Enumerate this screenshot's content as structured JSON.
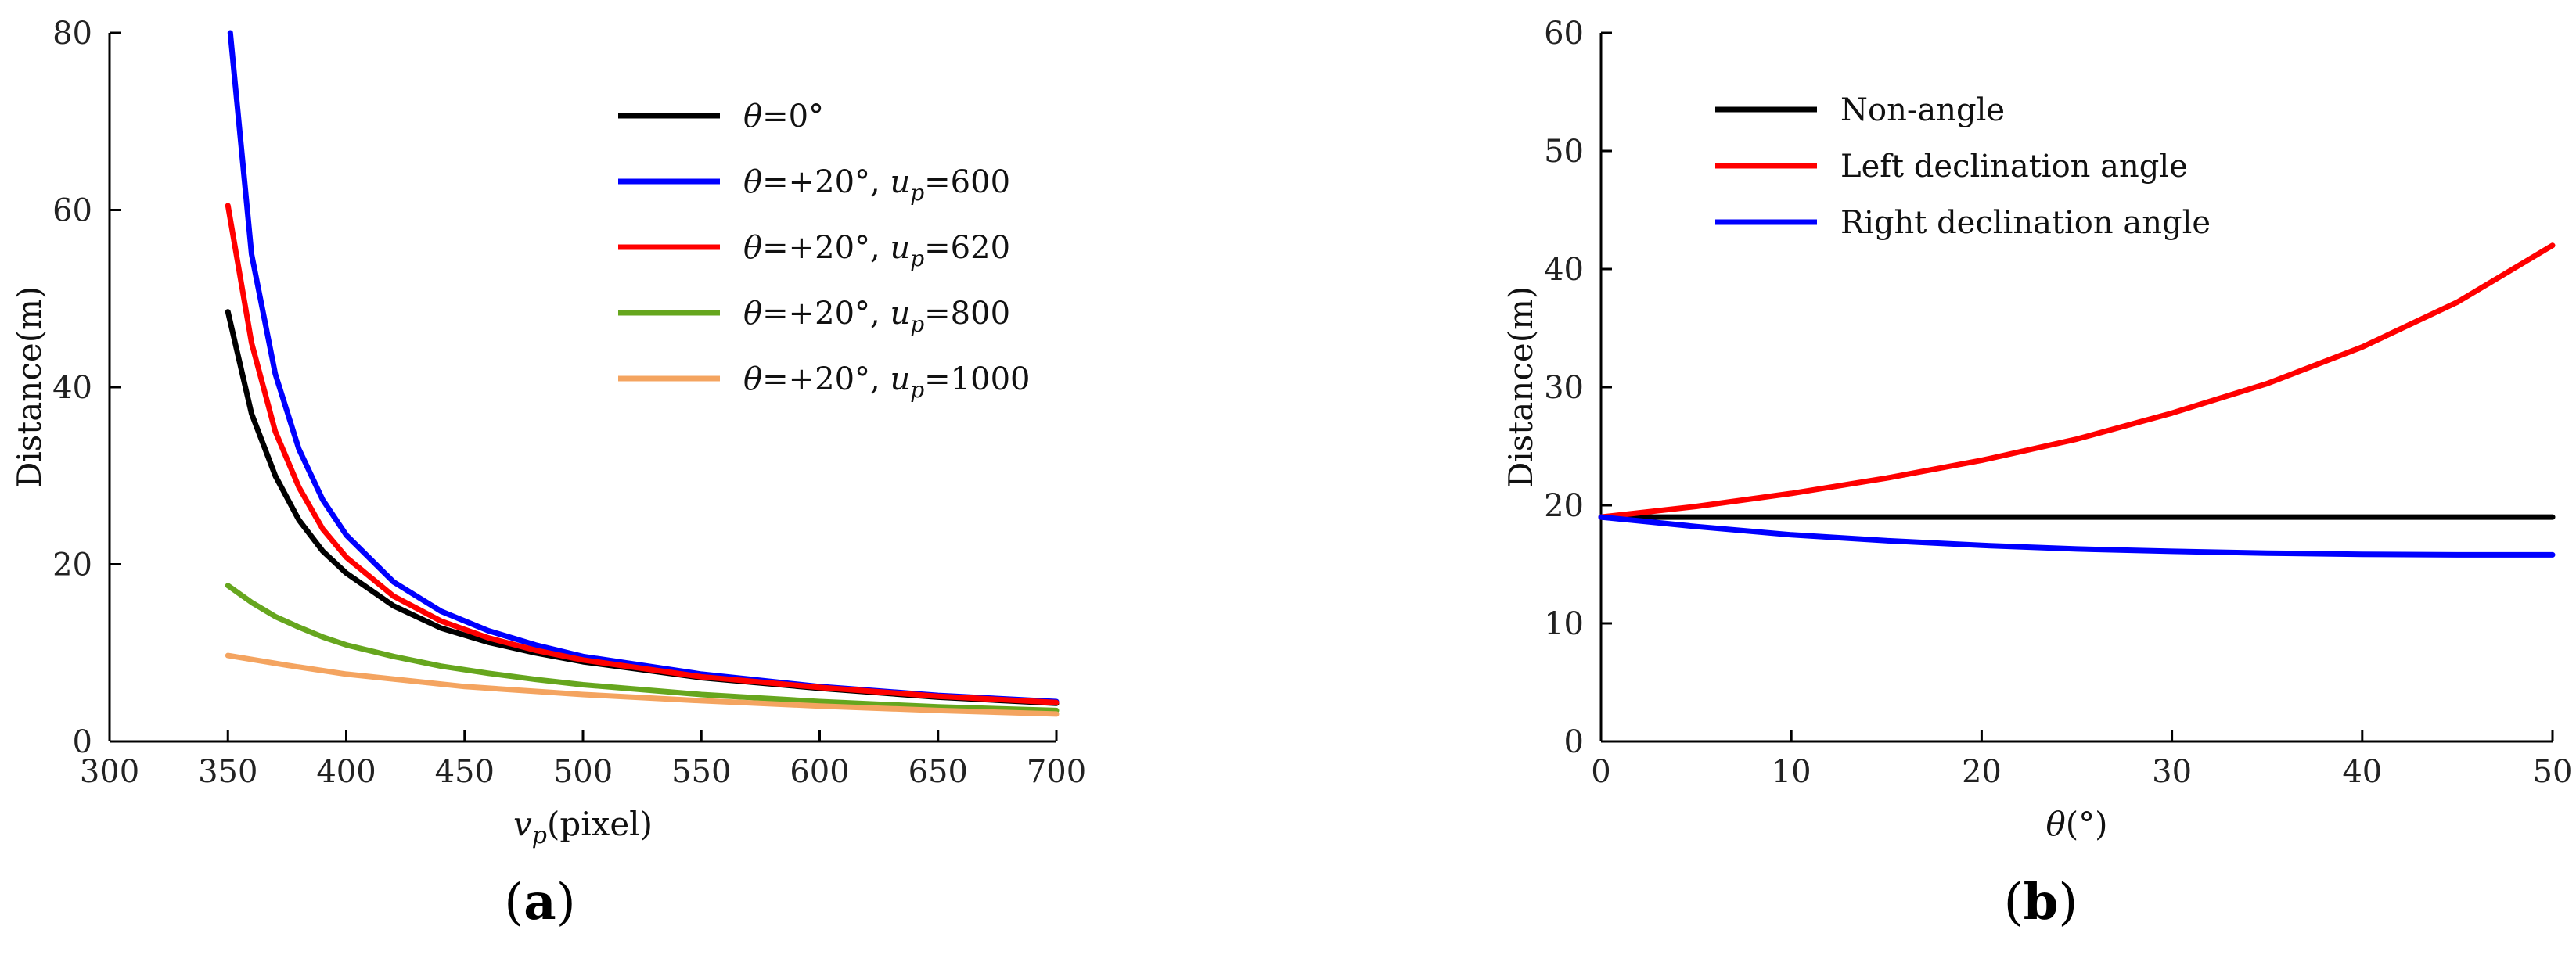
{
  "chart_data": [
    {
      "type": "line",
      "panel_label": "a",
      "xlabel_parts": [
        "v",
        "p",
        "(pixel)"
      ],
      "ylabel": "Distance(m)",
      "xlim": [
        300,
        700
      ],
      "ylim": [
        0,
        80
      ],
      "xticks": [
        300,
        350,
        400,
        450,
        500,
        550,
        600,
        650,
        700
      ],
      "yticks": [
        0,
        20,
        40,
        60,
        80
      ],
      "legend_position": "top-right",
      "series": [
        {
          "name": "θ=0°",
          "legend": {
            "sym": "θ",
            "rest": "=0°",
            "sub": "",
            "val": ""
          },
          "color": "#000000",
          "x": [
            350,
            360,
            370,
            380,
            390,
            400,
            420,
            440,
            460,
            480,
            500,
            550,
            600,
            650,
            700
          ],
          "y": [
            48.5,
            37,
            30,
            25,
            21.5,
            19,
            15.3,
            12.8,
            11.2,
            10,
            9,
            7.2,
            6,
            5,
            4.3
          ]
        },
        {
          "name": "θ=+20°, up=600",
          "legend": {
            "sym": "θ",
            "rest": "=+20°, ",
            "sub": "p",
            "val": "=600"
          },
          "color": "#0000ff",
          "x": [
            351,
            360,
            370,
            380,
            390,
            400,
            420,
            440,
            460,
            480,
            500,
            550,
            600,
            650,
            700
          ],
          "y": [
            80,
            55,
            41.5,
            33,
            27.3,
            23.3,
            18,
            14.7,
            12.5,
            10.9,
            9.6,
            7.6,
            6.2,
            5.2,
            4.5
          ]
        },
        {
          "name": "θ=+20°, up=620",
          "legend": {
            "sym": "θ",
            "rest": "=+20°, ",
            "sub": "p",
            "val": "=620"
          },
          "color": "#ff0000",
          "x": [
            350,
            360,
            370,
            380,
            390,
            400,
            420,
            440,
            460,
            480,
            500,
            550,
            600,
            650,
            700
          ],
          "y": [
            60.5,
            45,
            35,
            28.7,
            24,
            20.8,
            16.4,
            13.6,
            11.7,
            10.3,
            9.2,
            7.3,
            6.1,
            5.1,
            4.4
          ]
        },
        {
          "name": "θ=+20°, up=800",
          "legend": {
            "sym": "θ",
            "rest": "=+20°, ",
            "sub": "p",
            "val": "=800"
          },
          "color": "#66a61e",
          "x": [
            350,
            360,
            370,
            380,
            390,
            400,
            420,
            440,
            460,
            480,
            500,
            550,
            600,
            650,
            700
          ],
          "y": [
            17.6,
            15.7,
            14.1,
            12.9,
            11.8,
            10.9,
            9.6,
            8.5,
            7.7,
            7,
            6.4,
            5.3,
            4.5,
            3.9,
            3.5
          ]
        },
        {
          "name": "θ=+20°, up=1000",
          "legend": {
            "sym": "θ",
            "rest": "=+20°, ",
            "sub": "p",
            "val": "=1000"
          },
          "color": "#f4a460",
          "x": [
            350,
            375,
            400,
            450,
            500,
            550,
            600,
            650,
            700
          ],
          "y": [
            9.7,
            8.6,
            7.6,
            6.2,
            5.3,
            4.6,
            4,
            3.5,
            3.1
          ]
        }
      ]
    },
    {
      "type": "line",
      "panel_label": "b",
      "xlabel_parts": [
        "θ",
        "",
        "(°)"
      ],
      "ylabel": "Distance(m)",
      "xlim": [
        0,
        50
      ],
      "ylim": [
        0,
        60
      ],
      "xticks": [
        0,
        10,
        20,
        30,
        40,
        50
      ],
      "yticks": [
        0,
        10,
        20,
        30,
        40,
        50,
        60
      ],
      "legend_position": "top-left",
      "series": [
        {
          "name": "Non-angle",
          "legend": {
            "sym": "",
            "rest": "Non-angle",
            "sub": "",
            "val": ""
          },
          "color": "#000000",
          "x": [
            0,
            50
          ],
          "y": [
            19,
            19
          ]
        },
        {
          "name": "Left declination angle",
          "legend": {
            "sym": "",
            "rest": "Left declination angle",
            "sub": "",
            "val": ""
          },
          "color": "#ff0000",
          "x": [
            0,
            5,
            10,
            15,
            20,
            25,
            30,
            35,
            40,
            45,
            50
          ],
          "y": [
            19,
            19.9,
            21,
            22.3,
            23.8,
            25.6,
            27.8,
            30.3,
            33.4,
            37.2,
            42
          ]
        },
        {
          "name": "Right declination angle",
          "legend": {
            "sym": "",
            "rest": "Right declination angle",
            "sub": "",
            "val": ""
          },
          "color": "#0000ff",
          "x": [
            0,
            5,
            10,
            15,
            20,
            25,
            30,
            35,
            40,
            45,
            50
          ],
          "y": [
            19,
            18.2,
            17.5,
            17,
            16.6,
            16.3,
            16.1,
            15.95,
            15.85,
            15.8,
            15.8
          ]
        }
      ]
    }
  ]
}
